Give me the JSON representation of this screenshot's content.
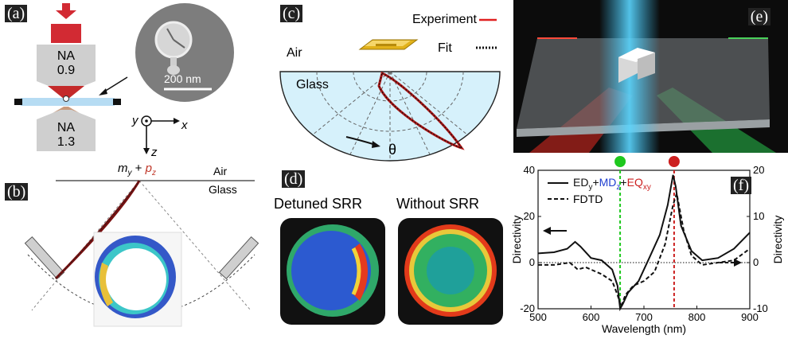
{
  "panel_a": {
    "label": "(a)",
    "objective_top": [
      "NA",
      "0.9"
    ],
    "objective_bottom": [
      "NA",
      "1.3"
    ],
    "scale_bar": "200 nm",
    "axes": {
      "y": "y",
      "x": "x",
      "z": "z"
    }
  },
  "panel_b": {
    "label": "(b)",
    "formula_m": "m",
    "formula_m_sub": "y",
    "formula_plus": " + ",
    "formula_p": "p",
    "formula_p_sub": "z",
    "air": "Air",
    "glass": "Glass"
  },
  "panel_c": {
    "label": "(c)",
    "experiment": "Experiment",
    "fit": "Fit",
    "air": "Air",
    "glass": "Glass",
    "theta": "θ"
  },
  "panel_d": {
    "label": "(d)",
    "left_title": "Detuned SRR",
    "right_title": "Without SRR"
  },
  "panel_e": {
    "label": "(e)"
  },
  "panel_f": {
    "label": "(f)"
  },
  "colors": {
    "red": "#cc1f1f",
    "green": "#1ec81e",
    "blue": "#1f3fd0",
    "experiment_red": "#e02020"
  },
  "chart_data": {
    "type": "line",
    "xlabel": "Wavelength (nm)",
    "ylabel_left": "Directivity",
    "ylabel_right": "Directivity",
    "xlim": [
      500,
      900
    ],
    "ylim_left": [
      -20,
      40
    ],
    "ylim_right": [
      -10,
      20
    ],
    "x_ticks": [
      500,
      600,
      700,
      800,
      900
    ],
    "y_ticks_left": [
      -20,
      0,
      20,
      40
    ],
    "y_ticks_right": [
      -10,
      0,
      10,
      20
    ],
    "legend_solid_parts": [
      "ED",
      "y",
      "+",
      "MD",
      "z",
      "+",
      "EQ",
      "xy"
    ],
    "legend_dashed": "FDTD",
    "markers": [
      {
        "x": 655,
        "color": "green"
      },
      {
        "x": 757,
        "color": "red"
      }
    ],
    "series": [
      {
        "name": "ED_y+MD_z+EQ_xy",
        "style": "solid",
        "x": [
          500,
          530,
          555,
          570,
          580,
          600,
          620,
          640,
          650,
          655,
          660,
          670,
          690,
          710,
          730,
          745,
          755,
          760,
          770,
          790,
          810,
          840,
          870,
          900
        ],
        "y": [
          4,
          4.5,
          6,
          9,
          7,
          2,
          1,
          -3,
          -10,
          -20,
          -18,
          -13,
          -8,
          2,
          12,
          25,
          38,
          33,
          16,
          5,
          1,
          2,
          6,
          13
        ]
      },
      {
        "name": "FDTD",
        "style": "dashed",
        "x": [
          500,
          530,
          560,
          575,
          590,
          600,
          620,
          640,
          650,
          657,
          665,
          680,
          700,
          720,
          740,
          755,
          762,
          775,
          790,
          810,
          840,
          870,
          900
        ],
        "y": [
          -1,
          -1,
          0,
          -3,
          -2,
          -3,
          -5,
          -8,
          -14,
          -19,
          -14,
          -10,
          -8,
          -4,
          8,
          25,
          30,
          14,
          3,
          -1,
          0,
          1,
          6
        ]
      }
    ]
  }
}
